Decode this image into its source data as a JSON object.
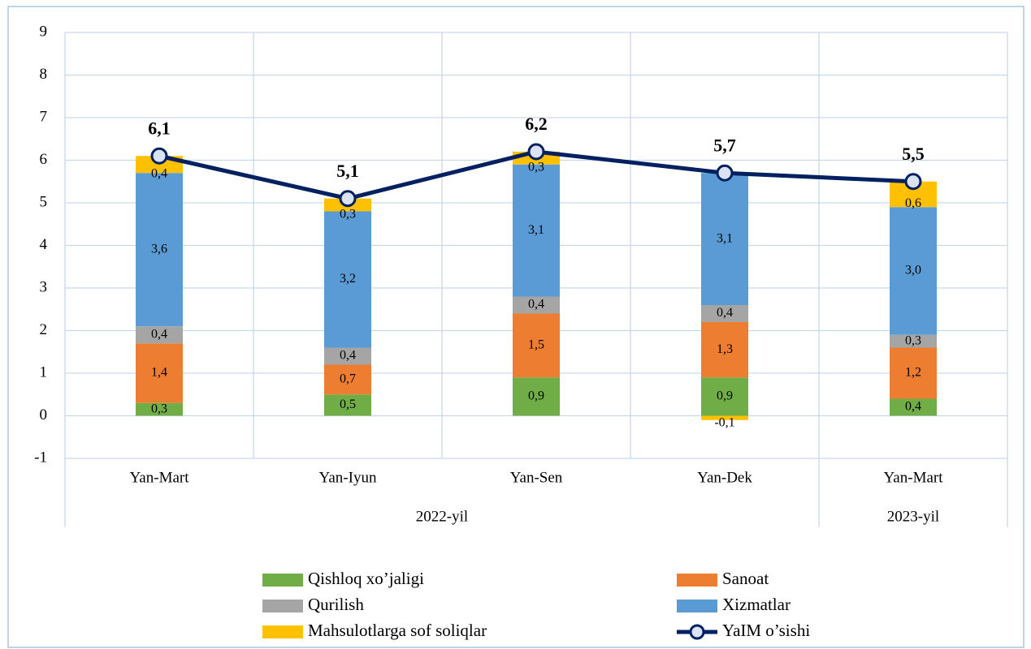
{
  "chart_data": {
    "type": "stacked_bar_line",
    "categories": [
      "Yan-Mart",
      "Yan-Iyun",
      "Yan-Sen",
      "Yan-Dek",
      "Yan-Mart"
    ],
    "category_groups": [
      {
        "name": "2022-yil",
        "count": 4
      },
      {
        "name": "2023-yil",
        "count": 1
      }
    ],
    "series": [
      {
        "name": "Qishloq xo’jaligi",
        "color": "#70ad47",
        "type": "bar",
        "values": [
          0.3,
          0.5,
          0.9,
          0.9,
          0.4
        ],
        "value_labels": [
          "0,3",
          "0,5",
          "0,9",
          "0,9",
          "0,4"
        ]
      },
      {
        "name": "Sanoat",
        "color": "#ed7d31",
        "type": "bar",
        "values": [
          1.4,
          0.7,
          1.5,
          1.3,
          1.2
        ],
        "value_labels": [
          "1,4",
          "0,7",
          "1,5",
          "1,3",
          "1,2"
        ]
      },
      {
        "name": "Qurilish",
        "color": "#a5a5a5",
        "type": "bar",
        "values": [
          0.4,
          0.4,
          0.4,
          0.4,
          0.3
        ],
        "value_labels": [
          "0,4",
          "0,4",
          "0,4",
          "0,4",
          "0,3"
        ]
      },
      {
        "name": "Xizmatlar",
        "color": "#5b9bd5",
        "type": "bar",
        "values": [
          3.6,
          3.2,
          3.1,
          3.1,
          3.0
        ],
        "value_labels": [
          "3,6",
          "3,2",
          "3,1",
          "3,1",
          "3,0"
        ]
      },
      {
        "name": "Mahsulotlarga sof soliqlar",
        "color": "#ffc000",
        "type": "bar",
        "values": [
          0.4,
          0.3,
          0.3,
          -0.1,
          0.6
        ],
        "value_labels": [
          "0,4",
          "0,3",
          "0,3",
          "-0,1",
          "0,6"
        ]
      },
      {
        "name": "YaIM o’sishi",
        "color": "#002060",
        "type": "line",
        "values": [
          6.1,
          5.1,
          6.2,
          5.7,
          5.5
        ],
        "value_labels": [
          "6,1",
          "5,1",
          "6,2",
          "5,7",
          "5,5"
        ]
      }
    ],
    "ylim": [
      -1,
      9
    ],
    "yticks": [
      -1,
      0,
      1,
      2,
      3,
      4,
      5,
      6,
      7,
      8,
      9
    ],
    "grid": true,
    "legend": "bottom"
  }
}
